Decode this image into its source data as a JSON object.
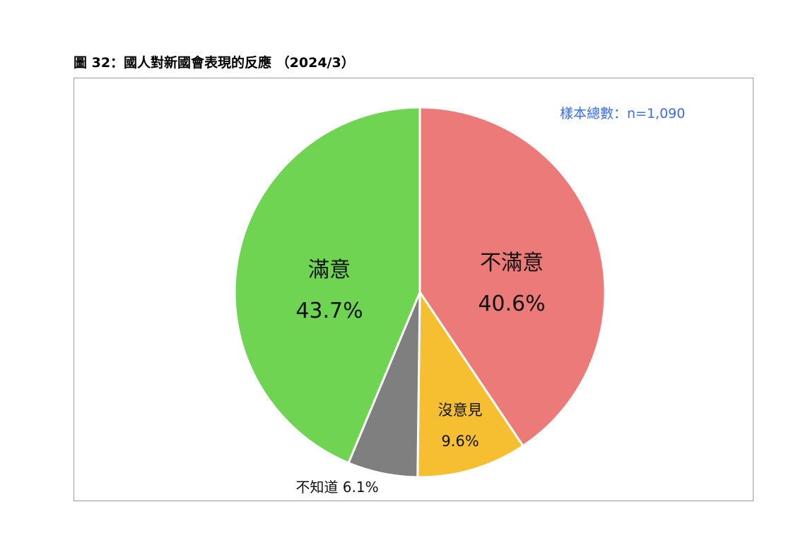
{
  "title": "圖 32：國人對新國會表現的反應 （2024/3）",
  "sample_note": "樣本總數：n=1,090",
  "chart_data": {
    "type": "pie",
    "title": "圖 32：國人對新國會表現的反應 （2024/3）",
    "annotation": "樣本總數：n=1,090",
    "slices": [
      {
        "label": "不滿意",
        "value": 40.6,
        "value_text": "40.6%",
        "color": "#ec7a78"
      },
      {
        "label": "沒意見",
        "value": 9.6,
        "value_text": "9.6%",
        "color": "#f6bf31"
      },
      {
        "label": "不知道",
        "value": 6.1,
        "value_text": "6.1%",
        "color": "#7f7f7f"
      },
      {
        "label": "滿意",
        "value": 43.7,
        "value_text": "43.7%",
        "color": "#6fd452"
      }
    ],
    "start_angle": "12 o'clock",
    "direction": "clockwise",
    "legend": "none"
  }
}
